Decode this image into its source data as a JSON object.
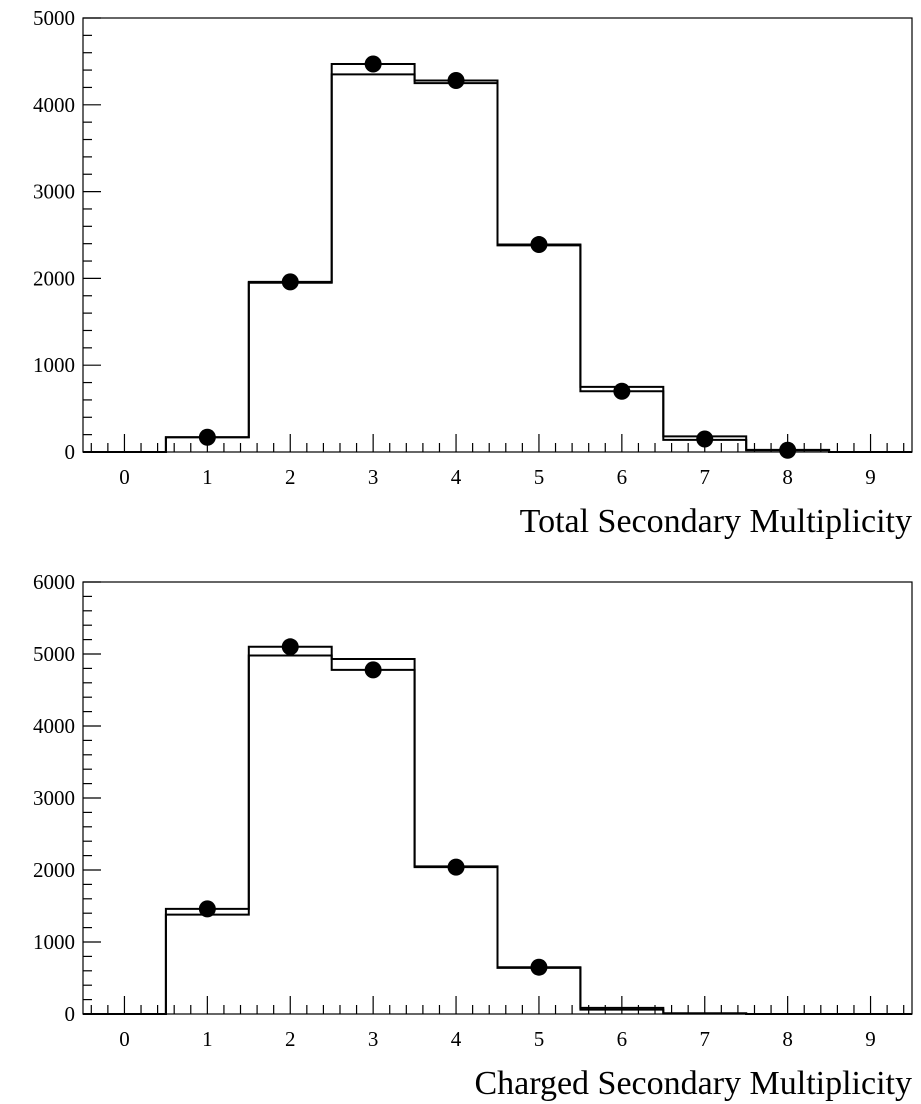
{
  "chart_data": [
    {
      "type": "histogram",
      "xlabel": "Total Secondary Multiplicity",
      "ylabel": "",
      "title": "",
      "xlim": [
        -0.5,
        9.5
      ],
      "ylim": [
        0,
        5000
      ],
      "xticks": [
        "0",
        "1",
        "2",
        "3",
        "4",
        "5",
        "6",
        "7",
        "8",
        "9"
      ],
      "yticks": [
        "0",
        "1000",
        "2000",
        "3000",
        "4000",
        "5000"
      ],
      "grid": false,
      "bins": [
        0,
        1,
        2,
        3,
        4,
        5,
        6,
        7,
        8,
        9
      ],
      "series": [
        {
          "style": "histogram-a",
          "values": [
            0,
            170,
            1950,
            4350,
            4250,
            2380,
            750,
            180,
            20,
            0
          ]
        },
        {
          "style": "histogram-b",
          "values": [
            0,
            170,
            1960,
            4470,
            4280,
            2390,
            700,
            140,
            25,
            0
          ]
        },
        {
          "style": "points",
          "values": [
            0,
            170,
            1960,
            4470,
            4280,
            2390,
            700,
            150,
            20,
            0
          ]
        }
      ]
    },
    {
      "type": "histogram",
      "xlabel": "Charged Secondary Multiplicity",
      "ylabel": "",
      "title": "",
      "xlim": [
        -0.5,
        9.5
      ],
      "ylim": [
        0,
        6000
      ],
      "xticks": [
        "0",
        "1",
        "2",
        "3",
        "4",
        "5",
        "6",
        "7",
        "8",
        "9"
      ],
      "yticks": [
        "0",
        "1000",
        "2000",
        "3000",
        "4000",
        "5000",
        "6000"
      ],
      "grid": false,
      "bins": [
        0,
        1,
        2,
        3,
        4,
        5,
        6,
        7,
        8,
        9
      ],
      "series": [
        {
          "style": "histogram-a",
          "values": [
            0,
            1380,
            4980,
            4930,
            2050,
            650,
            85,
            10,
            0,
            0
          ]
        },
        {
          "style": "histogram-b",
          "values": [
            0,
            1460,
            5100,
            4780,
            2040,
            640,
            60,
            5,
            0,
            0
          ]
        },
        {
          "style": "points",
          "values": [
            0,
            1460,
            5100,
            4780,
            2040,
            650,
            0,
            0,
            0,
            0
          ]
        }
      ]
    }
  ]
}
